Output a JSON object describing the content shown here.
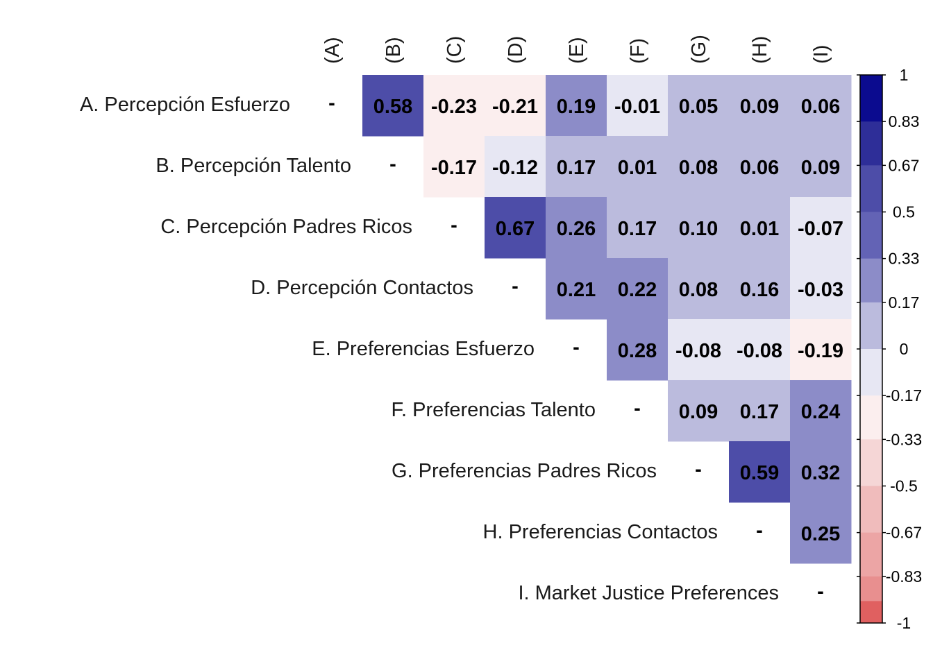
{
  "chart_data": {
    "type": "heatmap",
    "title": "",
    "row_labels": [
      "A. Percepción Esfuerzo",
      "B. Percepción Talento",
      "C. Percepción Padres Ricos",
      "D. Percepción Contactos",
      "E. Preferencias Esfuerzo",
      "F. Preferencias Talento",
      "G. Preferencias Padres Ricos",
      "H. Preferencias Contactos",
      "I. Market Justice Preferences"
    ],
    "col_labels": [
      "(A)",
      "(B)",
      "(C)",
      "(D)",
      "(E)",
      "(F)",
      "(G)",
      "(H)",
      "(I)"
    ],
    "diagonal_label": "-",
    "values": [
      [
        null,
        0.58,
        -0.23,
        -0.21,
        0.19,
        -0.01,
        0.05,
        0.09,
        0.06
      ],
      [
        null,
        null,
        -0.17,
        -0.12,
        0.17,
        0.01,
        0.08,
        0.06,
        0.09
      ],
      [
        null,
        null,
        null,
        0.67,
        0.26,
        0.17,
        0.1,
        0.01,
        -0.07
      ],
      [
        null,
        null,
        null,
        null,
        0.21,
        0.22,
        0.08,
        0.16,
        -0.03
      ],
      [
        null,
        null,
        null,
        null,
        null,
        0.28,
        -0.08,
        -0.08,
        -0.19
      ],
      [
        null,
        null,
        null,
        null,
        null,
        null,
        0.09,
        0.17,
        0.24
      ],
      [
        null,
        null,
        null,
        null,
        null,
        null,
        null,
        0.59,
        0.32
      ],
      [
        null,
        null,
        null,
        null,
        null,
        null,
        null,
        null,
        0.25
      ],
      [
        null,
        null,
        null,
        null,
        null,
        null,
        null,
        null,
        null
      ]
    ],
    "value_labels": [
      [
        "",
        "0.58",
        "-0.23",
        "-0.21",
        "0.19",
        "-0.01",
        "0.05",
        "0.09",
        "0.06"
      ],
      [
        "",
        "",
        "-0.17",
        "-0.12",
        "0.17",
        "0.01",
        "0.08",
        "0.06",
        "0.09"
      ],
      [
        "",
        "",
        "",
        "0.67",
        "0.26",
        "0.17",
        "0.10",
        "0.01",
        "-0.07"
      ],
      [
        "",
        "",
        "",
        "",
        "0.21",
        "0.22",
        "0.08",
        "0.16",
        "-0.03"
      ],
      [
        "",
        "",
        "",
        "",
        "",
        "0.28",
        "-0.08",
        "-0.08",
        "-0.19"
      ],
      [
        "",
        "",
        "",
        "",
        "",
        "",
        "0.09",
        "0.17",
        "0.24"
      ],
      [
        "",
        "",
        "",
        "",
        "",
        "",
        "",
        "0.59",
        "0.32"
      ],
      [
        "",
        "",
        "",
        "",
        "",
        "",
        "",
        "",
        "0.25"
      ],
      [
        "",
        "",
        "",
        "",
        "",
        "",
        "",
        "",
        ""
      ]
    ],
    "colorbar": {
      "range": [
        -1,
        1
      ],
      "ticks": [
        "1",
        "0.83",
        "0.67",
        "0.5",
        "0.33",
        "0.17",
        "0",
        "-0.17",
        "-0.33",
        "-0.5",
        "-0.67",
        "-0.83",
        "-1"
      ],
      "bands": [
        {
          "from": 0.83,
          "to": 1.0,
          "color": "#0b0b8f"
        },
        {
          "from": 0.67,
          "to": 0.83,
          "color": "#2e2e98"
        },
        {
          "from": 0.5,
          "to": 0.67,
          "color": "#4d4da8"
        },
        {
          "from": 0.33,
          "to": 0.5,
          "color": "#6363b5"
        },
        {
          "from": 0.17,
          "to": 0.33,
          "color": "#8c8cc8"
        },
        {
          "from": 0.0,
          "to": 0.17,
          "color": "#bbbbdd"
        },
        {
          "from": -0.17,
          "to": 0.0,
          "color": "#e7e7f3"
        },
        {
          "from": -0.33,
          "to": -0.17,
          "color": "#fbeeee"
        },
        {
          "from": -0.5,
          "to": -0.33,
          "color": "#f5d6d6"
        },
        {
          "from": -0.67,
          "to": -0.5,
          "color": "#f0bcbc"
        },
        {
          "from": -0.83,
          "to": -0.67,
          "color": "#eca5a5"
        },
        {
          "from": -0.92,
          "to": -0.83,
          "color": "#e88f8f"
        },
        {
          "from": -1.0,
          "to": -0.92,
          "color": "#e06060"
        }
      ]
    },
    "legend_position": "right"
  }
}
